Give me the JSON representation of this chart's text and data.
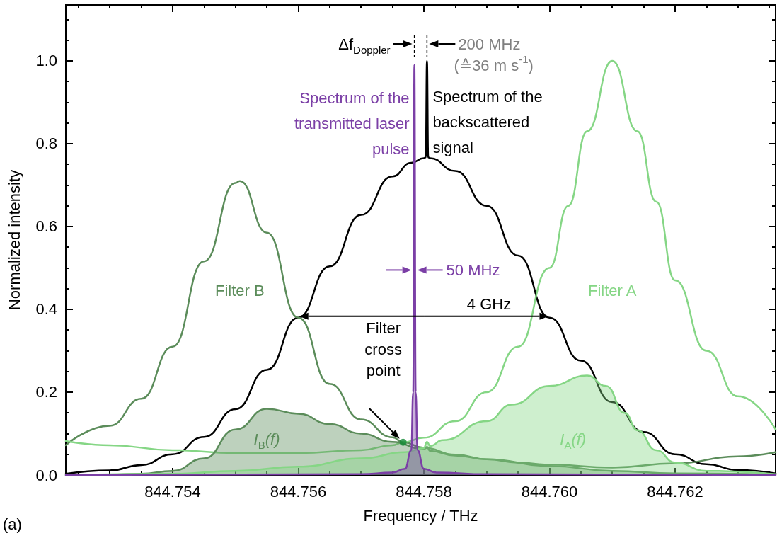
{
  "chart_data": {
    "type": "line",
    "xlabel": "Frequency / THz",
    "ylabel": "Normalized intensity",
    "marker": "none",
    "line_style": "solid",
    "xlim": [
      844.7523,
      844.7636
    ],
    "ylim": [
      0,
      1.135
    ],
    "xticks": [
      {
        "value": 844.7525,
        "label": null
      },
      {
        "value": 844.753,
        "label": null
      },
      {
        "value": 844.7535,
        "label": null
      },
      844.754,
      {
        "value": 844.7545,
        "label": null
      },
      {
        "value": 844.755,
        "label": null
      },
      {
        "value": 844.7555,
        "label": null
      },
      844.756,
      {
        "value": 844.7565,
        "label": null
      },
      {
        "value": 844.757,
        "label": null
      },
      {
        "value": 844.7575,
        "label": null
      },
      844.758,
      {
        "value": 844.7585,
        "label": null
      },
      {
        "value": 844.759,
        "label": null
      },
      {
        "value": 844.7595,
        "label": null
      },
      {
        "value": 844.76,
        "label": "844.760"
      },
      {
        "value": 844.7605,
        "label": null
      },
      {
        "value": 844.761,
        "label": null
      },
      {
        "value": 844.7615,
        "label": null
      },
      844.762,
      {
        "value": 844.7625,
        "label": null
      },
      {
        "value": 844.763,
        "label": null
      },
      {
        "value": 844.7635,
        "label": null
      }
    ],
    "yticks": [
      {
        "value": 0,
        "label": "0.0"
      },
      {
        "value": 0.05,
        "label": null
      },
      {
        "value": 0.1,
        "label": null
      },
      {
        "value": 0.15,
        "label": null
      },
      0.2,
      {
        "value": 0.25,
        "label": null
      },
      {
        "value": 0.3,
        "label": null
      },
      {
        "value": 0.35,
        "label": null
      },
      0.4,
      {
        "value": 0.45,
        "label": null
      },
      {
        "value": 0.5,
        "label": null
      },
      {
        "value": 0.55,
        "label": null
      },
      0.6,
      {
        "value": 0.65,
        "label": null
      },
      {
        "value": 0.7,
        "label": null
      },
      {
        "value": 0.75,
        "label": null
      },
      0.8,
      {
        "value": 0.85,
        "label": null
      },
      {
        "value": 0.9,
        "label": null
      },
      {
        "value": 0.95,
        "label": null
      },
      {
        "value": 1,
        "label": "1.0"
      },
      {
        "value": 1.05,
        "label": null
      },
      {
        "value": 1.1,
        "label": null
      }
    ],
    "series": [
      {
        "name": "Spectrum of the backscattered signal",
        "color": "#000000",
        "x": [
          844.7523,
          844.753,
          844.7535,
          844.754,
          844.7545,
          844.755,
          844.7555,
          844.756,
          844.7565,
          844.757,
          844.7575,
          844.7578,
          844.758,
          844.75803,
          844.75805,
          844.75807,
          844.7581,
          844.7585,
          844.759,
          844.7595,
          844.76,
          844.7605,
          844.761,
          844.7615,
          844.762,
          844.7625,
          844.763,
          844.7636
        ],
        "values": [
          0.003,
          0.011,
          0.024,
          0.05,
          0.092,
          0.159,
          0.254,
          0.38,
          0.504,
          0.628,
          0.721,
          0.754,
          0.765,
          0.767,
          1.0,
          0.767,
          0.765,
          0.734,
          0.65,
          0.53,
          0.38,
          0.276,
          0.176,
          0.104,
          0.05,
          0.026,
          0.012,
          0.004
        ]
      },
      {
        "name": "Filter B",
        "color": "#5b8c5a",
        "x": [
          844.7523,
          844.753,
          844.7535,
          844.754,
          844.7545,
          844.755,
          844.75507,
          844.7555,
          844.756,
          844.7565,
          844.757,
          844.7575,
          844.75767,
          844.758,
          844.7585,
          844.759,
          844.7595,
          844.76,
          844.761,
          844.762,
          844.763,
          844.7636
        ],
        "values": [
          0.072,
          0.119,
          0.184,
          0.31,
          0.516,
          0.705,
          0.71,
          0.585,
          0.38,
          0.22,
          0.134,
          0.091,
          0.079,
          0.066,
          0.049,
          0.038,
          0.03,
          0.025,
          0.018,
          0.028,
          0.045,
          0.055
        ]
      },
      {
        "name": "Filter A",
        "color": "#85d685",
        "x": [
          844.7523,
          844.753,
          844.754,
          844.755,
          844.756,
          844.757,
          844.7575,
          844.75767,
          844.758,
          844.7585,
          844.759,
          844.7595,
          844.76,
          844.7603,
          844.7606,
          844.761,
          844.7614,
          844.7617,
          844.762,
          844.7625,
          844.763,
          844.7636
        ],
        "values": [
          0.082,
          0.072,
          0.06,
          0.053,
          0.053,
          0.06,
          0.072,
          0.079,
          0.09,
          0.13,
          0.2,
          0.31,
          0.5,
          0.65,
          0.83,
          1.0,
          0.83,
          0.66,
          0.47,
          0.3,
          0.19,
          0.11
        ]
      },
      {
        "name": "I$_{B}$(f)",
        "type": "area",
        "color": "#5b8c5a",
        "x": [
          844.7523,
          844.753,
          844.7535,
          844.754,
          844.7545,
          844.755,
          844.7555,
          844.756,
          844.7565,
          844.757,
          844.7575,
          844.758,
          844.75805,
          844.7581,
          844.7585,
          844.759,
          844.76,
          844.761,
          844.762,
          844.7636
        ],
        "values": [
          0,
          0.001,
          0.003,
          0.01,
          0.04,
          0.11,
          0.16,
          0.148,
          0.123,
          0.1,
          0.08,
          0.062,
          0.068,
          0.058,
          0.047,
          0.038,
          0.022,
          0.01,
          0.004,
          0.001
        ]
      },
      {
        "name": "I$_{A}$(f)",
        "type": "area",
        "color": "#85d685",
        "x": [
          844.7523,
          844.754,
          844.755,
          844.756,
          844.757,
          844.7577,
          844.758,
          844.75805,
          844.7581,
          844.7583,
          844.759,
          844.7594,
          844.76,
          844.7606,
          844.7609,
          844.7612,
          844.7614,
          844.7617,
          844.762,
          844.7625,
          844.7636
        ],
        "values": [
          0,
          0.003,
          0.01,
          0.02,
          0.04,
          0.055,
          0.065,
          0.08,
          0.07,
          0.084,
          0.13,
          0.17,
          0.215,
          0.24,
          0.215,
          0.15,
          0.108,
          0.06,
          0.03,
          0.01,
          0.002
        ]
      },
      {
        "name": "Spectrum of the transmitted laser pulse",
        "type": "area",
        "color": "#7b3fa6",
        "x": [
          844.7523,
          844.757,
          844.7575,
          844.7577,
          844.7578,
          844.75783,
          844.75785,
          844.75787,
          844.7579,
          844.758,
          844.7582,
          844.759,
          844.7636
        ],
        "values": [
          0,
          0.002,
          0.006,
          0.015,
          0.06,
          0.2,
          0.99,
          0.2,
          0.06,
          0.015,
          0.006,
          0.002,
          0
        ]
      },
      {
        "type": "scatter",
        "marker": "circle",
        "color": "#138a36",
        "x": [
          844.75767
        ],
        "values": [
          0.079
        ]
      }
    ],
    "annotations": [
      "4 GHz",
      "50 MHz",
      "Δf$_{Doppler}$",
      "200 MHz",
      "(≙36 m s$^{-1}$)",
      "Filter cross point",
      "(a)"
    ]
  }
}
